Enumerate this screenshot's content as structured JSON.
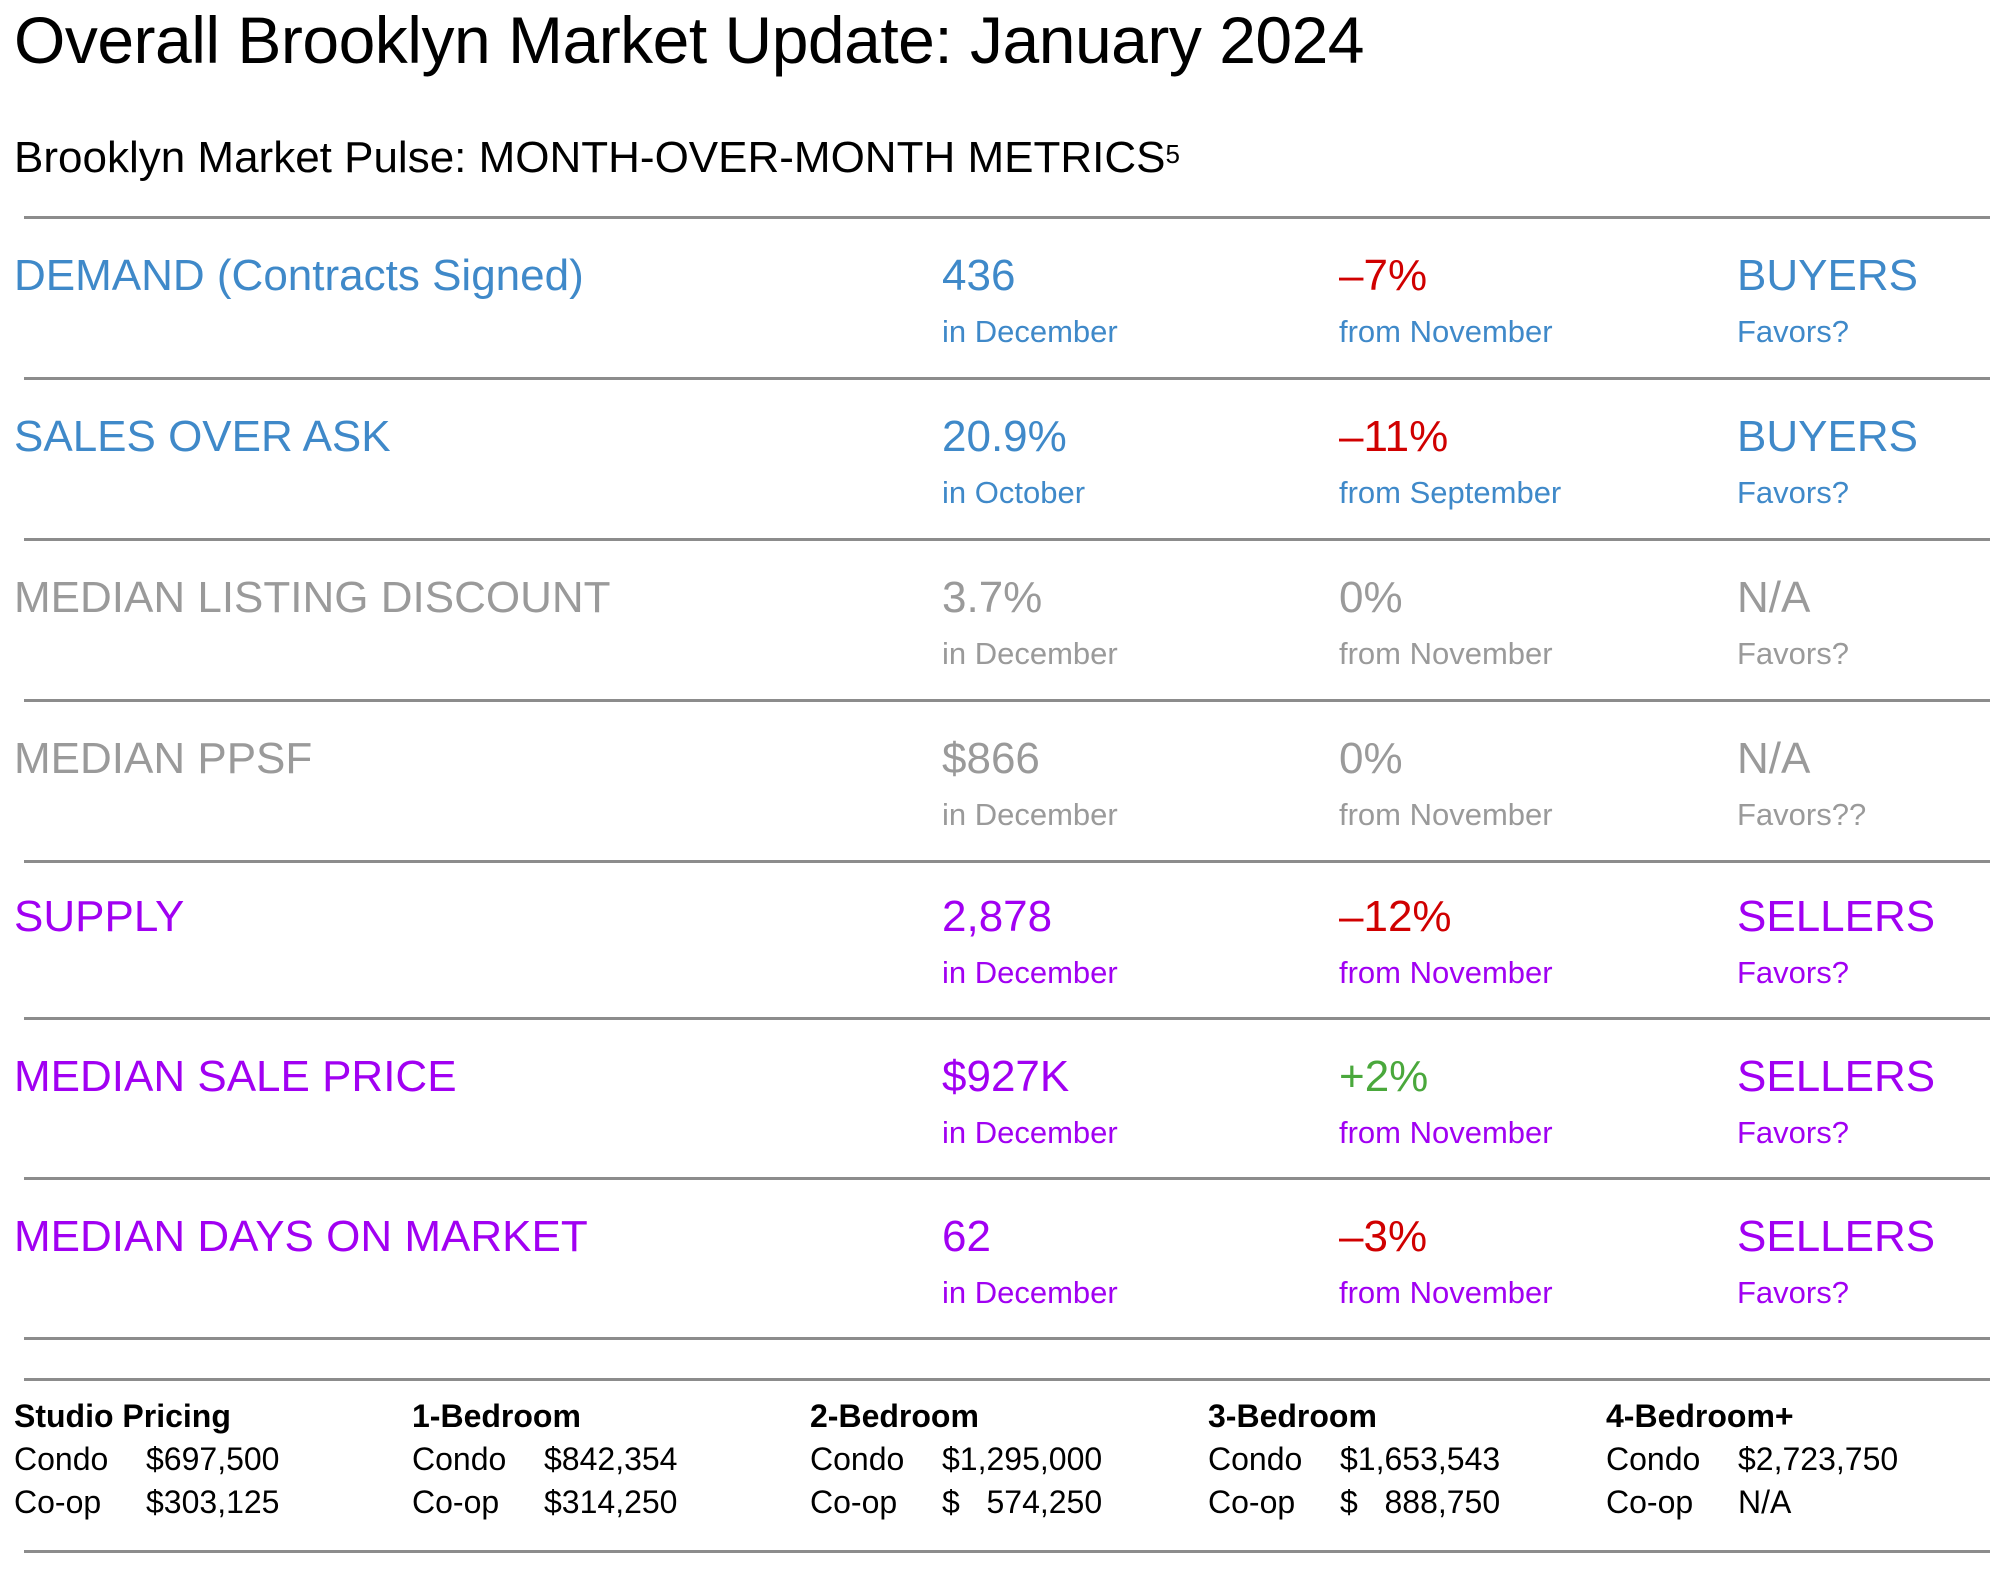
{
  "title": "Overall Brooklyn Market Update: January 2024",
  "subtitle": {
    "text": "Brooklyn Market Pulse: MONTH-OVER-MONTH METRICS",
    "footnote": "5"
  },
  "colors": {
    "buyers": "#3f89c9",
    "neutral": "#9a9a9a",
    "sellers": "#a100f2",
    "decrease": "#d00000",
    "increase": "#4aa83c"
  },
  "metrics": [
    {
      "label": "DEMAND (Contracts Signed)",
      "value": "436",
      "period": "in December",
      "change": "–7%",
      "change_period": "from November",
      "favors": "BUYERS",
      "favors_label": "Favors?"
    },
    {
      "label": "SALES OVER ASK",
      "value": "20.9%",
      "period": "in October",
      "change": "–11%",
      "change_period": "from September",
      "favors": "BUYERS",
      "favors_label": "Favors?"
    },
    {
      "label": "MEDIAN LISTING DISCOUNT",
      "value": "3.7%",
      "period": "in December",
      "change": "0%",
      "change_period": "from November",
      "favors": "N/A",
      "favors_label": "Favors?"
    },
    {
      "label": "MEDIAN PPSF",
      "value": "$866",
      "period": "in December",
      "change": "0%",
      "change_period": "from November",
      "favors": "N/A",
      "favors_label": "Favors??"
    },
    {
      "label": "SUPPLY",
      "value": "2,878",
      "period": "in December",
      "change": "–12%",
      "change_period": "from November",
      "favors": "SELLERS",
      "favors_label": "Favors?"
    },
    {
      "label": "MEDIAN SALE PRICE",
      "value": "$927K",
      "period": "in December",
      "change": "+2%",
      "change_period": "from November",
      "favors": "SELLERS",
      "favors_label": "Favors?"
    },
    {
      "label": "MEDIAN DAYS ON MARKET",
      "value": "62",
      "period": "in December",
      "change": "–3%",
      "change_period": "from November",
      "favors": "SELLERS",
      "favors_label": "Favors?"
    }
  ],
  "pricing": [
    {
      "heading": "Studio Pricing",
      "condo_label": "Condo",
      "condo": "$697,500",
      "coop_label": "Co-op",
      "coop": "$303,125"
    },
    {
      "heading": "1-Bedroom",
      "condo_label": "Condo",
      "condo": "$842,354",
      "coop_label": "Co-op",
      "coop": "$314,250"
    },
    {
      "heading": "2-Bedroom",
      "condo_label": "Condo",
      "condo": "$1,295,000",
      "coop_label": "Co-op",
      "coop": "$   574,250"
    },
    {
      "heading": "3-Bedroom",
      "condo_label": "Condo",
      "condo": "$1,653,543",
      "coop_label": "Co-op",
      "coop": "$   888,750"
    },
    {
      "heading": "4-Bedroom+",
      "condo_label": "Condo",
      "condo": "$2,723,750",
      "coop_label": "Co-op",
      "coop": "N/A"
    }
  ]
}
